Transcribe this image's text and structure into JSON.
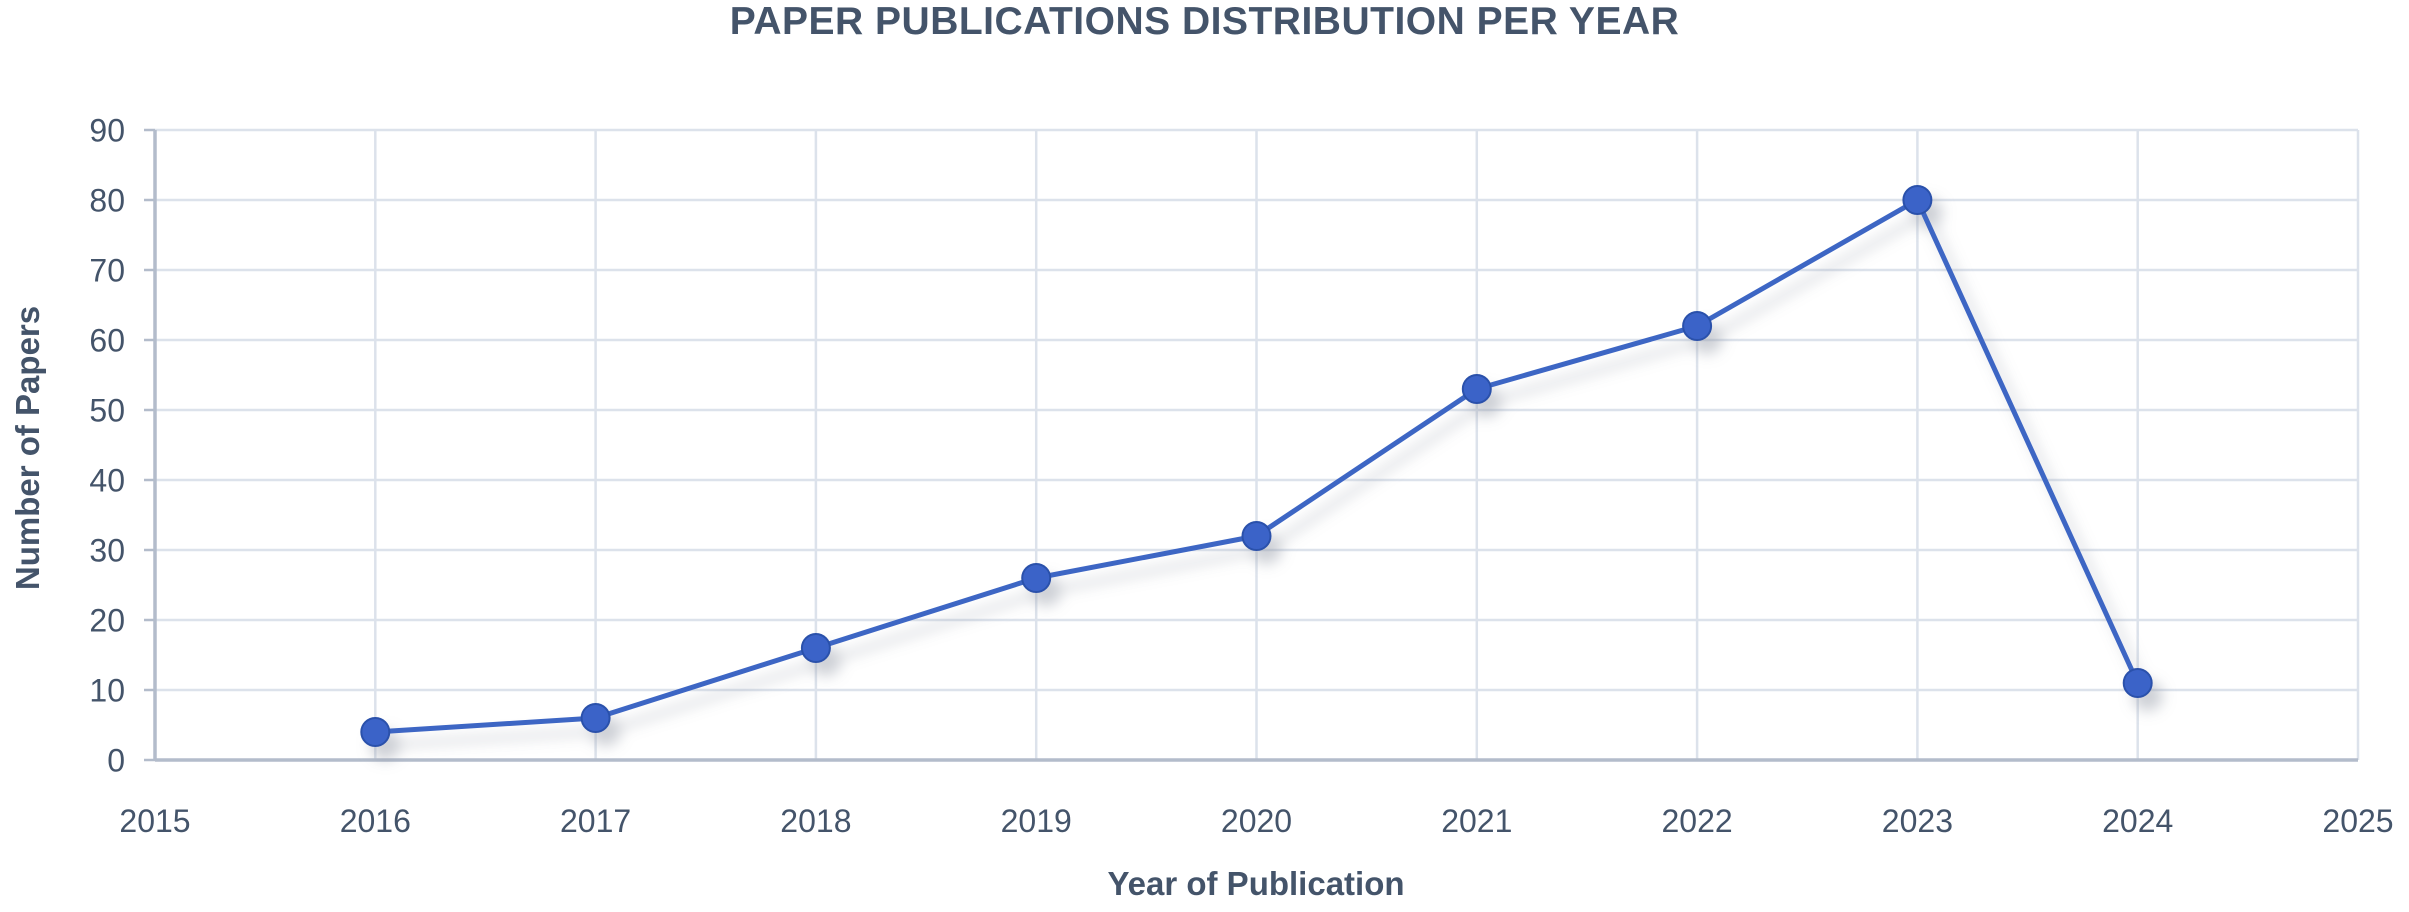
{
  "chart_data": {
    "type": "line",
    "title": "PAPER PUBLICATIONS DISTRIBUTION PER YEAR",
    "xlabel": "Year of Publication",
    "ylabel": "Number of Papers",
    "x": [
      2016,
      2017,
      2018,
      2019,
      2020,
      2021,
      2022,
      2023,
      2024
    ],
    "values": [
      4,
      6,
      16,
      26,
      32,
      53,
      62,
      80,
      11
    ],
    "xlim": [
      2015,
      2025
    ],
    "ylim": [
      0,
      90
    ],
    "xticks": [
      2015,
      2016,
      2017,
      2018,
      2019,
      2020,
      2021,
      2022,
      2023,
      2024,
      2025
    ],
    "yticks": [
      0,
      10,
      20,
      30,
      40,
      50,
      60,
      70,
      80,
      90
    ],
    "grid": true,
    "legend": "none",
    "series_name": "Number of Papers",
    "colors": {
      "line": "#3E66C4",
      "marker": "#3A63C8",
      "marker_border": "#2B51AB",
      "grid": "#DCE2EB",
      "axis": "#B3BCCB",
      "text": "#44546A",
      "title": "#44546A",
      "background": "#FFFFFF"
    }
  }
}
